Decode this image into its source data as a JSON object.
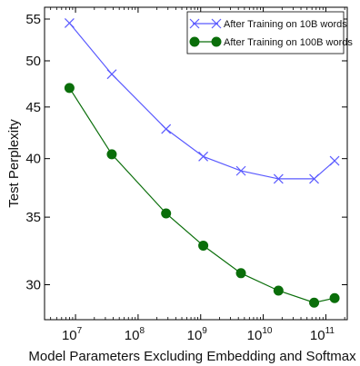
{
  "chart_data": {
    "type": "line",
    "title": "",
    "xlabel": "Model Parameters Excluding Embedding and Softmax",
    "ylabel": "Test Perplexity",
    "xscale": "log",
    "yscale": "log",
    "xlim": [
      3200000.0,
      220000000000.0
    ],
    "ylim": [
      27.7,
      56.5
    ],
    "xticks": [
      {
        "value": 10000000.0,
        "base": "10",
        "exp": "7"
      },
      {
        "value": 100000000.0,
        "base": "10",
        "exp": "8"
      },
      {
        "value": 1000000000.0,
        "base": "10",
        "exp": "9"
      },
      {
        "value": 10000000000.0,
        "base": "10",
        "exp": "10"
      },
      {
        "value": 100000000000.0,
        "base": "10",
        "exp": "11"
      }
    ],
    "yticks": [
      {
        "value": 30,
        "label": "30"
      },
      {
        "value": 35,
        "label": "35"
      },
      {
        "value": 40,
        "label": "40"
      },
      {
        "value": 45,
        "label": "45"
      },
      {
        "value": 50,
        "label": "50"
      },
      {
        "value": 55,
        "label": "55"
      }
    ],
    "grid": false,
    "legend_position": "top-right",
    "series": [
      {
        "name": "After Training on 10B words",
        "color": "#5a5aff",
        "marker": "x",
        "x": [
          8000000.0,
          38000000.0,
          280000000.0,
          1100000000.0,
          4400000000.0,
          17500000000.0,
          65000000000.0,
          138000000000.0
        ],
        "y": [
          54.5,
          48.5,
          42.8,
          40.2,
          38.9,
          38.2,
          38.2,
          39.8
        ]
      },
      {
        "name": "After Training on 100B words",
        "color": "#0a6e0a",
        "marker": "o",
        "x": [
          8000000.0,
          38000000.0,
          280000000.0,
          1100000000.0,
          4400000000.0,
          17500000000.0,
          65000000000.0,
          138000000000.0
        ],
        "y": [
          47.0,
          40.4,
          35.3,
          32.8,
          30.8,
          29.6,
          28.8,
          29.1
        ]
      }
    ]
  }
}
